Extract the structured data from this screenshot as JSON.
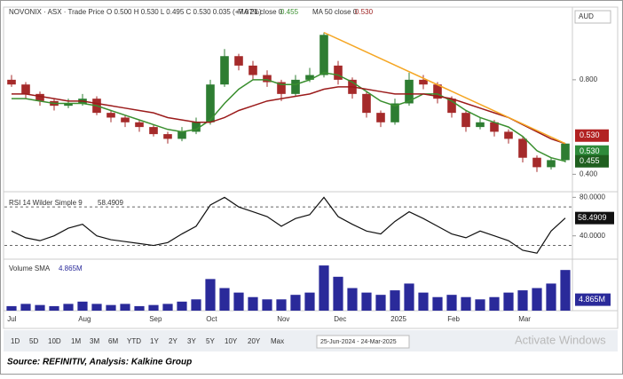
{
  "chart_data": {
    "type": "candlestick",
    "header": [
      "NOVONIX · ASX · Trade Price",
      "O 0.500  H 0.530  L 0.495  C 0.530  0.035 (+7.07%)"
    ],
    "currency": "AUD",
    "categories": [
      "Jul",
      null,
      null,
      null,
      null,
      "Aug",
      null,
      null,
      null,
      null,
      "Sep",
      null,
      null,
      null,
      "Oct",
      null,
      null,
      null,
      null,
      "Nov",
      null,
      null,
      null,
      "Dec",
      null,
      null,
      null,
      "2025",
      null,
      null,
      null,
      "Feb",
      null,
      null,
      null,
      null,
      "Mar",
      null,
      null,
      null
    ],
    "open": [
      0.8,
      0.78,
      0.74,
      0.71,
      0.69,
      0.7,
      0.72,
      0.66,
      0.64,
      0.62,
      0.6,
      0.57,
      0.55,
      0.58,
      0.62,
      0.78,
      0.9,
      0.86,
      0.82,
      0.79,
      0.74,
      0.8,
      0.82,
      0.86,
      0.8,
      0.74,
      0.66,
      0.62,
      0.7,
      0.8,
      0.78,
      0.72,
      0.66,
      0.6,
      0.62,
      0.58,
      0.55,
      0.47,
      0.43,
      0.46
    ],
    "high": [
      0.82,
      0.79,
      0.75,
      0.72,
      0.72,
      0.74,
      0.73,
      0.67,
      0.65,
      0.63,
      0.61,
      0.58,
      0.6,
      0.64,
      0.8,
      0.93,
      0.91,
      0.88,
      0.84,
      0.8,
      0.82,
      0.85,
      1.0,
      0.88,
      0.81,
      0.75,
      0.67,
      0.72,
      0.83,
      0.82,
      0.79,
      0.73,
      0.67,
      0.64,
      0.63,
      0.59,
      0.56,
      0.48,
      0.47,
      0.53
    ],
    "low": [
      0.77,
      0.72,
      0.69,
      0.67,
      0.68,
      0.69,
      0.65,
      0.62,
      0.6,
      0.58,
      0.56,
      0.53,
      0.54,
      0.57,
      0.61,
      0.77,
      0.84,
      0.8,
      0.77,
      0.71,
      0.73,
      0.79,
      0.81,
      0.78,
      0.72,
      0.64,
      0.6,
      0.61,
      0.69,
      0.76,
      0.7,
      0.64,
      0.58,
      0.59,
      0.56,
      0.53,
      0.45,
      0.41,
      0.42,
      0.45
    ],
    "close": [
      0.78,
      0.74,
      0.71,
      0.69,
      0.7,
      0.72,
      0.66,
      0.64,
      0.62,
      0.6,
      0.57,
      0.55,
      0.58,
      0.62,
      0.78,
      0.9,
      0.86,
      0.82,
      0.79,
      0.74,
      0.8,
      0.82,
      0.99,
      0.8,
      0.74,
      0.66,
      0.62,
      0.7,
      0.8,
      0.78,
      0.72,
      0.66,
      0.6,
      0.62,
      0.58,
      0.55,
      0.47,
      0.43,
      0.46,
      0.53
    ],
    "up_color": "#2e7d32",
    "down_color": "#a52a2a",
    "ylim": [
      0.33,
      1.1
    ],
    "yticks": [
      {
        "value": 0.8,
        "label": "0.800"
      },
      {
        "value": 0.4,
        "label": "0.400"
      }
    ],
    "series": [
      {
        "name": "MA 21 close 0",
        "value_label": "0.455",
        "color": "#3a8f2f",
        "tag_color": "#1f5f1f",
        "values": [
          0.72,
          0.72,
          0.71,
          0.7,
          0.7,
          0.7,
          0.69,
          0.67,
          0.65,
          0.63,
          0.61,
          0.59,
          0.58,
          0.59,
          0.63,
          0.7,
          0.76,
          0.8,
          0.8,
          0.78,
          0.78,
          0.8,
          0.83,
          0.82,
          0.79,
          0.75,
          0.71,
          0.69,
          0.71,
          0.74,
          0.74,
          0.71,
          0.67,
          0.64,
          0.62,
          0.6,
          0.56,
          0.5,
          0.47,
          0.455
        ]
      },
      {
        "name": "MA 50 close 0",
        "value_label": "0.530",
        "color": "#9b1b1b",
        "tag_color": "#b22222",
        "values": [
          0.74,
          0.74,
          0.73,
          0.72,
          0.71,
          0.71,
          0.7,
          0.69,
          0.68,
          0.67,
          0.66,
          0.64,
          0.63,
          0.62,
          0.62,
          0.64,
          0.67,
          0.69,
          0.71,
          0.72,
          0.73,
          0.74,
          0.76,
          0.77,
          0.77,
          0.76,
          0.75,
          0.74,
          0.74,
          0.74,
          0.73,
          0.72,
          0.7,
          0.68,
          0.66,
          0.64,
          0.61,
          0.58,
          0.55,
          0.53
        ]
      }
    ],
    "last_close": {
      "value": 0.53,
      "label": "0.530",
      "color": "#2e8b3a"
    },
    "trendline": {
      "x": [
        22,
        39
      ],
      "values": [
        1.0,
        0.53
      ],
      "color": "#f5a623"
    },
    "rsi": {
      "name": "RSI 14 Wilder Simple 9",
      "values": [
        45,
        38,
        35,
        40,
        48,
        52,
        40,
        36,
        34,
        32,
        30,
        33,
        42,
        50,
        72,
        80,
        70,
        65,
        60,
        50,
        58,
        62,
        80,
        60,
        52,
        45,
        42,
        55,
        65,
        58,
        50,
        42,
        38,
        45,
        40,
        35,
        25,
        22,
        45,
        58.4909
      ],
      "last": {
        "value": 58.4909,
        "label": "58.4909"
      },
      "ylim": [
        17.6,
        84
      ],
      "yticks": [
        {
          "value": 80,
          "label": "80.0000"
        },
        {
          "value": 40,
          "label": "40.0000"
        }
      ],
      "levels": [
        30,
        70
      ],
      "color": "#111111"
    },
    "volume": {
      "name": "Volume SMA",
      "values": [
        2,
        3,
        2.5,
        2,
        3,
        4,
        3,
        2.5,
        3,
        2,
        2.5,
        3,
        4,
        5,
        14,
        10,
        8,
        6,
        5,
        5,
        7,
        8,
        20,
        15,
        10,
        8,
        7,
        9,
        12,
        8,
        6,
        7,
        6,
        5,
        6,
        8,
        9,
        10,
        12,
        18
      ],
      "last": {
        "value": 4.865,
        "label": "4.865M"
      },
      "ylim": [
        0,
        22
      ],
      "color": "#2a2a9a"
    }
  },
  "toolbar": {
    "buttons": [
      "1D",
      "5D",
      "10D",
      "1M",
      "3M",
      "6M",
      "YTD",
      "1Y",
      "2Y",
      "3Y",
      "5Y",
      "10Y",
      "20Y",
      "Max"
    ],
    "date_range": "25-Jun-2024 - 24-Mar-2025"
  },
  "watermark": "Activate Windows",
  "source": "Source: REFINITIV, Analysis: Kalkine Group"
}
